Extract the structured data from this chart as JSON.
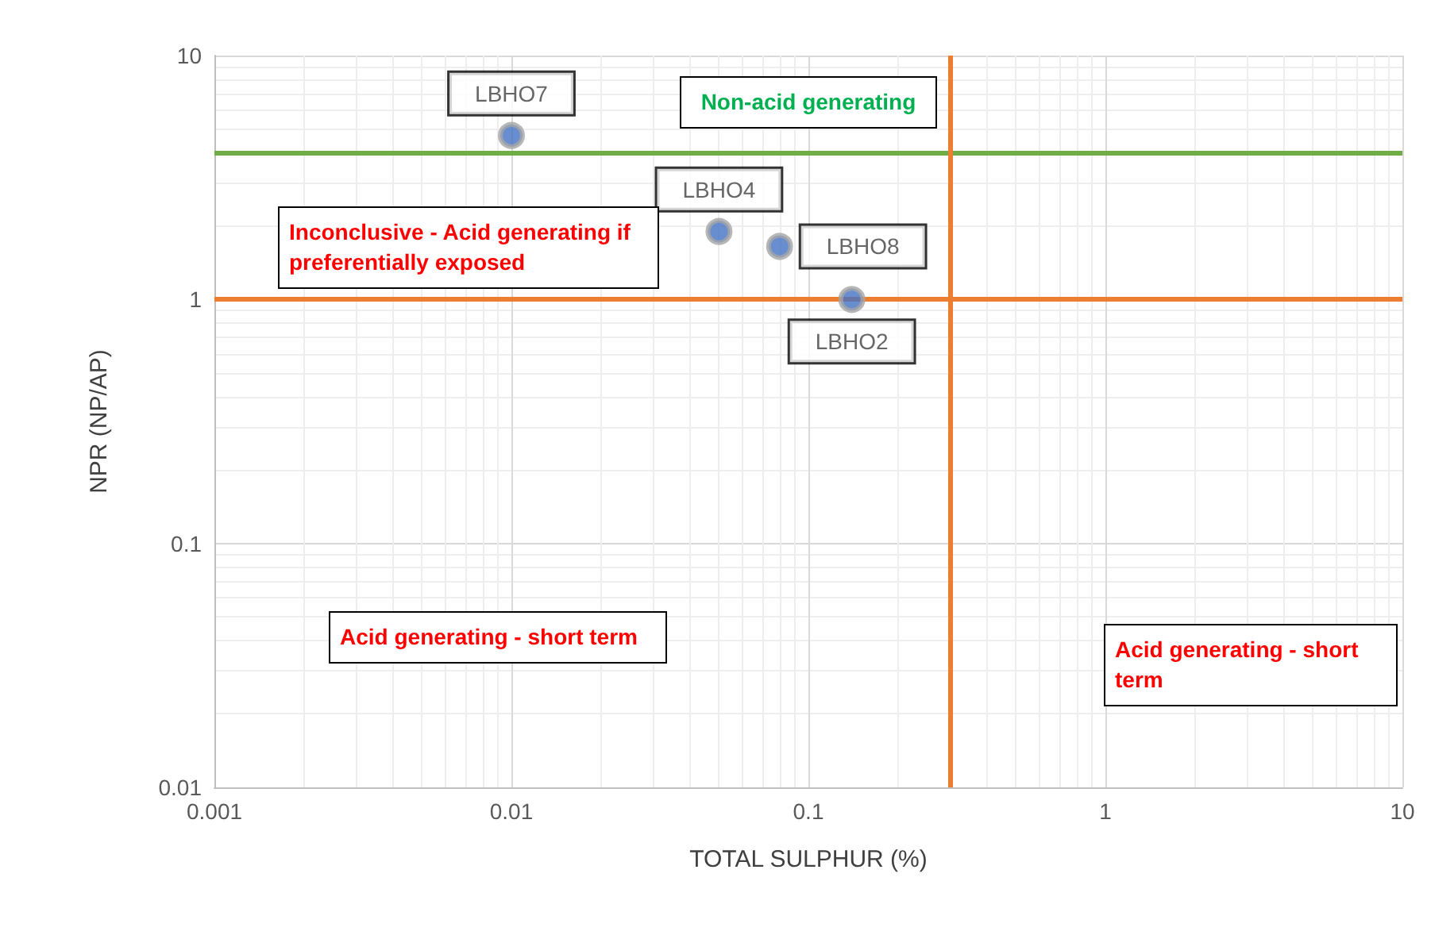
{
  "chart_data": {
    "type": "scatter",
    "xlabel": "TOTAL SULPHUR (%)",
    "ylabel": "NPR (NP/AP)",
    "x": [
      0.01,
      0.05,
      0.08,
      0.14
    ],
    "series": [
      {
        "color": "#4472c4",
        "values": [
          4.7,
          1.9,
          1.65,
          1.0
        ],
        "value_labels": [
          "LBHO7",
          "LBHO4",
          "LBHO8",
          "LBHO2"
        ]
      }
    ],
    "log": "xy",
    "xlim": [
      0.001,
      10
    ],
    "ylim": [
      0.01,
      10
    ],
    "xticks": [
      0.001,
      0.01,
      0.1,
      1,
      10
    ],
    "yticks": [
      0.01,
      0.1,
      1,
      10
    ],
    "grid": true,
    "marker": "circle",
    "ref_lines": [
      {
        "axis": "y",
        "value": 4,
        "color": "#70ad47"
      },
      {
        "axis": "y",
        "value": 1,
        "color": "#ed7d31"
      },
      {
        "axis": "x",
        "value": 0.3,
        "color": "#ed7d31"
      }
    ],
    "annotations": [
      "Non-acid generating",
      "Inconclusive - Acid generating if preferentially exposed",
      "Acid generating - short term",
      "Acid generating - short term"
    ]
  }
}
